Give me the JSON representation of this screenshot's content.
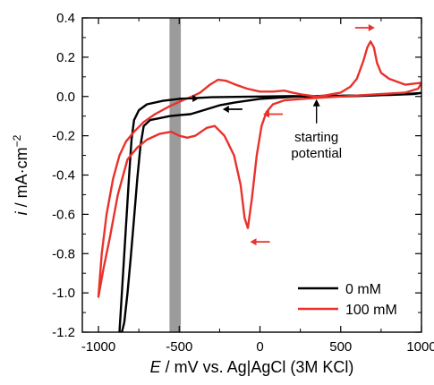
{
  "chart_data": {
    "type": "line",
    "x_axis": {
      "label_italic": "E",
      "label_rest": " / mV vs. Ag|AgCl (3M KCl)",
      "range": [
        -1100,
        1000
      ],
      "ticks": [
        -1000,
        -500,
        0,
        500,
        1000
      ],
      "tick_labels": [
        "-1000",
        "-500",
        "0",
        "500",
        "1000"
      ]
    },
    "y_axis": {
      "label_italic": "i",
      "label_rest": " / mA·cm",
      "label_sup": "−2",
      "range": [
        -1.2,
        0.4
      ],
      "ticks": [
        -1.2,
        -1.0,
        -0.8,
        -0.6,
        -0.4,
        -0.2,
        0.0,
        0.2,
        0.4
      ],
      "tick_labels": [
        "-1.2",
        "-1.0",
        "-0.8",
        "-0.6",
        "-0.4",
        "-0.2",
        "0.0",
        "0.2",
        "0.4"
      ]
    },
    "grid": false,
    "legend_position": "bottom-right",
    "shaded_band": {
      "x_range": [
        -560,
        -490
      ],
      "color": "#9b9b9b"
    },
    "annotations": [
      {
        "text_lines": [
          "starting",
          "potential"
        ],
        "arrow_to": [
          350,
          0.0
        ]
      }
    ],
    "direction_arrows": [
      {
        "series": "0 mM",
        "at": [
          -440,
          -0.01
        ],
        "direction": "right",
        "color": "#000000"
      },
      {
        "series": "0 mM",
        "at": [
          -170,
          -0.065
        ],
        "direction": "left",
        "color": "#000000"
      },
      {
        "series": "100 mM",
        "at": [
          650,
          0.35
        ],
        "direction": "right",
        "color": "#e8322b"
      },
      {
        "series": "100 mM",
        "at": [
          80,
          -0.09
        ],
        "direction": "left",
        "color": "#e8322b"
      },
      {
        "series": "100 mM",
        "at": [
          0,
          -0.74
        ],
        "direction": "left",
        "color": "#e8322b"
      }
    ],
    "series": [
      {
        "name": "0 mM",
        "color": "#000000",
        "points": [
          [
            350,
            0.0
          ],
          [
            500,
            0.0
          ],
          [
            700,
            0.005
          ],
          [
            900,
            0.012
          ],
          [
            1000,
            0.018
          ],
          [
            950,
            0.012
          ],
          [
            800,
            0.008
          ],
          [
            600,
            0.005
          ],
          [
            400,
            0.004
          ],
          [
            200,
            -0.002
          ],
          [
            0,
            -0.012
          ],
          [
            -150,
            -0.03
          ],
          [
            -250,
            -0.045
          ],
          [
            -350,
            -0.07
          ],
          [
            -430,
            -0.09
          ],
          [
            -500,
            -0.095
          ],
          [
            -560,
            -0.1
          ],
          [
            -620,
            -0.11
          ],
          [
            -680,
            -0.12
          ],
          [
            -720,
            -0.15
          ],
          [
            -740,
            -0.25
          ],
          [
            -760,
            -0.42
          ],
          [
            -780,
            -0.62
          ],
          [
            -800,
            -0.82
          ],
          [
            -820,
            -1.0
          ],
          [
            -840,
            -1.15
          ],
          [
            -855,
            -1.2
          ],
          [
            -870,
            -1.2
          ],
          [
            -855,
            -1.0
          ],
          [
            -840,
            -0.8
          ],
          [
            -825,
            -0.6
          ],
          [
            -810,
            -0.4
          ],
          [
            -795,
            -0.22
          ],
          [
            -780,
            -0.12
          ],
          [
            -750,
            -0.07
          ],
          [
            -700,
            -0.04
          ],
          [
            -600,
            -0.022
          ],
          [
            -500,
            -0.012
          ],
          [
            -300,
            -0.004
          ],
          [
            0,
            0.0
          ],
          [
            200,
            0.002
          ],
          [
            350,
            0.0
          ]
        ]
      },
      {
        "name": "100 mM",
        "color": "#e8322b",
        "points": [
          [
            350,
            0.0
          ],
          [
            400,
            0.005
          ],
          [
            500,
            0.02
          ],
          [
            560,
            0.05
          ],
          [
            600,
            0.09
          ],
          [
            640,
            0.18
          ],
          [
            665,
            0.25
          ],
          [
            685,
            0.28
          ],
          [
            705,
            0.25
          ],
          [
            725,
            0.17
          ],
          [
            750,
            0.12
          ],
          [
            800,
            0.09
          ],
          [
            900,
            0.06
          ],
          [
            1000,
            0.07
          ],
          [
            980,
            0.04
          ],
          [
            900,
            0.02
          ],
          [
            700,
            0.01
          ],
          [
            500,
            0.0
          ],
          [
            300,
            -0.01
          ],
          [
            150,
            -0.02
          ],
          [
            80,
            -0.04
          ],
          [
            40,
            -0.08
          ],
          [
            10,
            -0.15
          ],
          [
            -20,
            -0.3
          ],
          [
            -50,
            -0.52
          ],
          [
            -75,
            -0.67
          ],
          [
            -95,
            -0.62
          ],
          [
            -120,
            -0.45
          ],
          [
            -160,
            -0.3
          ],
          [
            -220,
            -0.2
          ],
          [
            -280,
            -0.15
          ],
          [
            -330,
            -0.16
          ],
          [
            -400,
            -0.2
          ],
          [
            -450,
            -0.21
          ],
          [
            -500,
            -0.2
          ],
          [
            -550,
            -0.18
          ],
          [
            -620,
            -0.19
          ],
          [
            -700,
            -0.22
          ],
          [
            -760,
            -0.26
          ],
          [
            -820,
            -0.32
          ],
          [
            -880,
            -0.5
          ],
          [
            -930,
            -0.72
          ],
          [
            -970,
            -0.88
          ],
          [
            -1000,
            -1.02
          ],
          [
            -980,
            -0.8
          ],
          [
            -950,
            -0.6
          ],
          [
            -910,
            -0.42
          ],
          [
            -870,
            -0.3
          ],
          [
            -830,
            -0.23
          ],
          [
            -780,
            -0.18
          ],
          [
            -720,
            -0.13
          ],
          [
            -650,
            -0.09
          ],
          [
            -560,
            -0.05
          ],
          [
            -480,
            -0.02
          ],
          [
            -420,
            0.0
          ],
          [
            -370,
            0.02
          ],
          [
            -310,
            0.06
          ],
          [
            -260,
            0.085
          ],
          [
            -210,
            0.08
          ],
          [
            -150,
            0.06
          ],
          [
            -80,
            0.04
          ],
          [
            0,
            0.025
          ],
          [
            80,
            0.025
          ],
          [
            150,
            0.03
          ],
          [
            200,
            0.02
          ],
          [
            260,
            0.01
          ],
          [
            350,
            0.0
          ]
        ]
      }
    ]
  }
}
